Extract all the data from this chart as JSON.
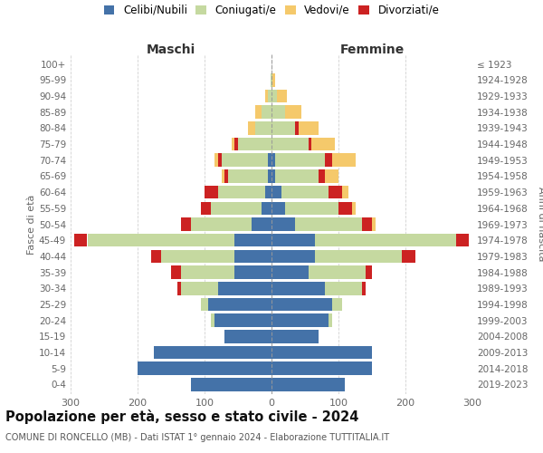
{
  "age_groups": [
    "0-4",
    "5-9",
    "10-14",
    "15-19",
    "20-24",
    "25-29",
    "30-34",
    "35-39",
    "40-44",
    "45-49",
    "50-54",
    "55-59",
    "60-64",
    "65-69",
    "70-74",
    "75-79",
    "80-84",
    "85-89",
    "90-94",
    "95-99",
    "100+"
  ],
  "birth_years": [
    "2019-2023",
    "2014-2018",
    "2009-2013",
    "2004-2008",
    "1999-2003",
    "1994-1998",
    "1989-1993",
    "1984-1988",
    "1979-1983",
    "1974-1978",
    "1969-1973",
    "1964-1968",
    "1959-1963",
    "1954-1958",
    "1949-1953",
    "1944-1948",
    "1939-1943",
    "1934-1938",
    "1929-1933",
    "1924-1928",
    "≤ 1923"
  ],
  "maschi": {
    "celibi": [
      120,
      200,
      175,
      70,
      85,
      95,
      80,
      55,
      55,
      55,
      30,
      15,
      10,
      5,
      5,
      0,
      0,
      0,
      0,
      0,
      0
    ],
    "coniugati": [
      0,
      0,
      0,
      0,
      5,
      10,
      55,
      80,
      110,
      220,
      90,
      75,
      70,
      60,
      70,
      50,
      25,
      15,
      5,
      2,
      0
    ],
    "vedovi": [
      0,
      0,
      0,
      0,
      0,
      0,
      0,
      0,
      0,
      0,
      0,
      0,
      0,
      5,
      5,
      5,
      10,
      10,
      5,
      0,
      0
    ],
    "divorziati": [
      0,
      0,
      0,
      0,
      0,
      0,
      5,
      15,
      15,
      20,
      15,
      15,
      20,
      5,
      5,
      5,
      0,
      0,
      0,
      0,
      0
    ]
  },
  "femmine": {
    "nubili": [
      110,
      150,
      150,
      70,
      85,
      90,
      80,
      55,
      65,
      65,
      35,
      20,
      15,
      5,
      5,
      0,
      0,
      0,
      0,
      0,
      0
    ],
    "coniugate": [
      0,
      0,
      0,
      0,
      5,
      15,
      55,
      85,
      130,
      210,
      100,
      80,
      70,
      65,
      75,
      55,
      35,
      20,
      8,
      2,
      0
    ],
    "vedove": [
      0,
      0,
      0,
      0,
      0,
      0,
      0,
      0,
      0,
      0,
      5,
      5,
      10,
      20,
      35,
      35,
      30,
      25,
      15,
      3,
      0
    ],
    "divorziate": [
      0,
      0,
      0,
      0,
      0,
      0,
      5,
      10,
      20,
      20,
      15,
      20,
      20,
      10,
      10,
      5,
      5,
      0,
      0,
      0,
      0
    ]
  },
  "colors": {
    "celibi": "#4472a8",
    "coniugati": "#c5d9a0",
    "vedovi": "#f5c96b",
    "divorziati": "#cc2222"
  },
  "xlim": 300,
  "title": "Popolazione per età, sesso e stato civile - 2024",
  "subtitle": "COMUNE DI RONCELLO (MB) - Dati ISTAT 1° gennaio 2024 - Elaborazione TUTTITALIA.IT",
  "ylabel_left": "Fasce di età",
  "ylabel_right": "Anni di nascita",
  "xlabel_left": "Maschi",
  "xlabel_right": "Femmine",
  "background_color": "#ffffff",
  "grid_color": "#cccccc"
}
